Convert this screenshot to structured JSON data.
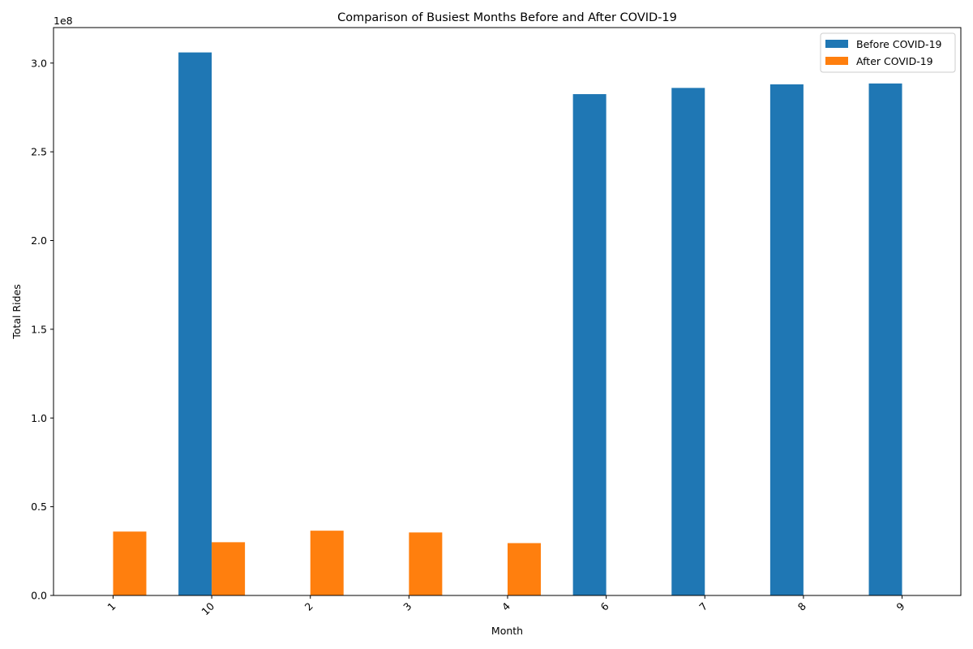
{
  "chart_data": {
    "type": "bar",
    "title": "Comparison of Busiest Months Before and After COVID-19",
    "xlabel": "Month",
    "ylabel": "Total Rides",
    "y_offset_label": "1e8",
    "categories": [
      "1",
      "10",
      "2",
      "3",
      "4",
      "6",
      "7",
      "8",
      "9"
    ],
    "series": [
      {
        "name": "Before COVID-19",
        "color": "#1f77b4",
        "values": [
          null,
          306000000,
          null,
          null,
          null,
          282500000,
          286000000,
          288000000,
          288500000
        ]
      },
      {
        "name": "After COVID-19",
        "color": "#ff7f0e",
        "values": [
          36000000,
          30000000,
          36500000,
          35500000,
          29500000,
          null,
          null,
          null,
          null
        ]
      }
    ],
    "ylim": [
      0,
      320000000
    ],
    "yticks": [
      0,
      50000000,
      100000000,
      150000000,
      200000000,
      250000000,
      300000000
    ],
    "ytick_labels": [
      "0.0",
      "0.5",
      "1.0",
      "1.5",
      "2.0",
      "2.5",
      "3.0"
    ],
    "xtick_rotation": -45,
    "grid": false,
    "legend_position": "top-right"
  }
}
